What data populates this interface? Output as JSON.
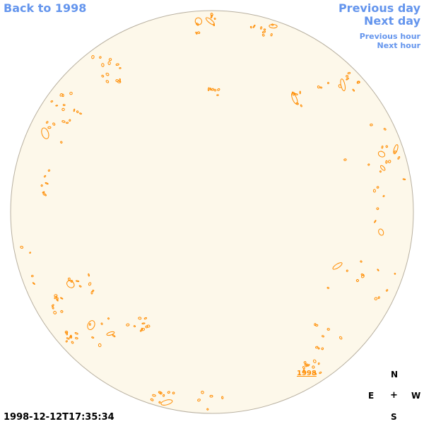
{
  "nav": {
    "back": "Back to 1998",
    "previous_day": "Previous day",
    "next_day": "Next day",
    "previous_hour": "Previous hour",
    "next_hour": "Next hour"
  },
  "compass": {
    "north": "N",
    "east": "E",
    "center": "+",
    "west": "W",
    "south": "S"
  },
  "timestamp": "1998-12-12T17:35:34",
  "disk_label": "1998",
  "colors": {
    "disk_fill": "#fdf8ea",
    "disk_border": "#b8b0a0",
    "contour": "#ff8c00",
    "nav_link": "#6495ed"
  }
}
